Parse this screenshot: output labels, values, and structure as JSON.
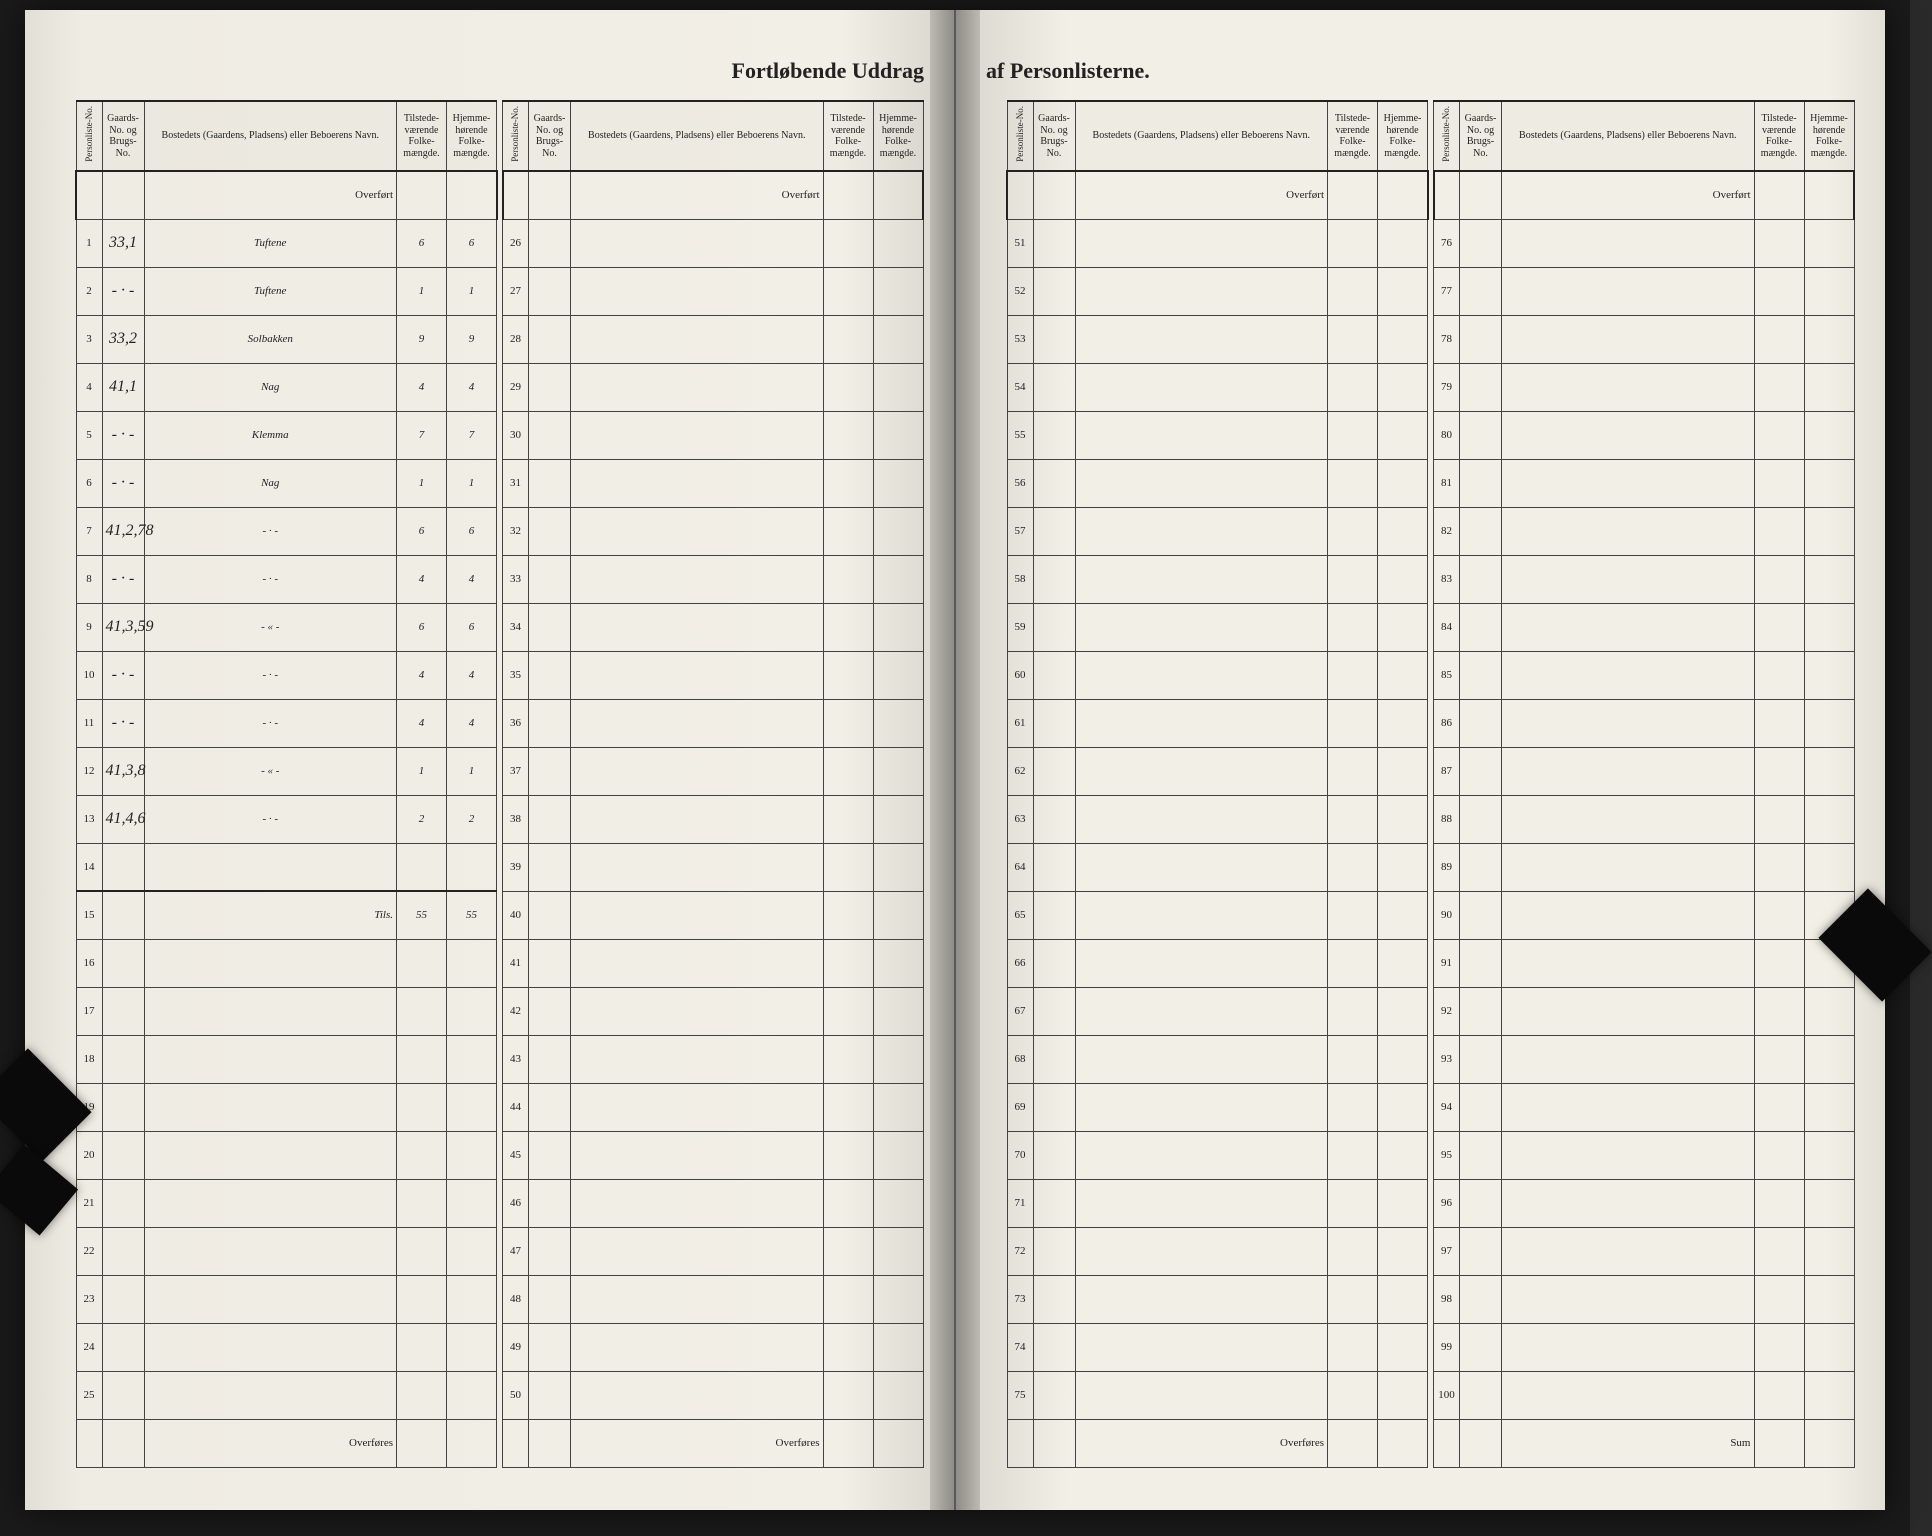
{
  "document": {
    "type": "ledger-table",
    "language": "no",
    "title_left": "Fortløbende Uddrag",
    "title_right": "af Personlisterne.",
    "overfort_label": "Overført",
    "overfores_label": "Overføres",
    "sum_label": "Sum",
    "headers": {
      "personliste_no": "Personliste-No.",
      "gaards_no": "Gaards-No. og Brugs-No.",
      "bosted": "Bostedets (Gaardens, Pladsens) eller Beboerens Navn.",
      "tilstede": "Tilstede-værende Folke-mængde.",
      "hjemme": "Hjemme-hørende Folke-mængde."
    },
    "colors": {
      "paper": "#f2efe6",
      "ink_print": "#222222",
      "ink_hand": "#3a3a3a",
      "rule": "#434343",
      "heavy_rule": "#222222",
      "background": "#1a1a1a"
    },
    "typography": {
      "title_size_pt": 16,
      "header_size_pt": 8,
      "rownum_size_pt": 10,
      "handwriting_family": "cursive"
    },
    "layout": {
      "rows_per_block": 25,
      "blocks": 4,
      "row_ranges": [
        [
          1,
          25
        ],
        [
          26,
          50
        ],
        [
          51,
          75
        ],
        [
          76,
          100
        ]
      ]
    }
  },
  "entries": [
    {
      "no": 1,
      "gaard": "33,1",
      "bosted": "Tuftene",
      "til": "6",
      "hjem": "6"
    },
    {
      "no": 2,
      "gaard": "- · -",
      "bosted": "Tuftene",
      "til": "1",
      "hjem": "1"
    },
    {
      "no": 3,
      "gaard": "33,2",
      "bosted": "Solbakken",
      "til": "9",
      "hjem": "9"
    },
    {
      "no": 4,
      "gaard": "41,1",
      "bosted": "Nag",
      "til": "4",
      "hjem": "4"
    },
    {
      "no": 5,
      "gaard": "- · -",
      "bosted": "Klemma",
      "til": "7",
      "hjem": "7"
    },
    {
      "no": 6,
      "gaard": "- · -",
      "bosted": "Nag",
      "til": "1",
      "hjem": "1"
    },
    {
      "no": 7,
      "gaard": "41,2,78",
      "bosted": "- · -",
      "til": "6",
      "hjem": "6"
    },
    {
      "no": 8,
      "gaard": "- · -",
      "bosted": "- · -",
      "til": "4",
      "hjem": "4"
    },
    {
      "no": 9,
      "gaard": "41,3,59",
      "bosted": "- « -",
      "til": "6",
      "hjem": "6"
    },
    {
      "no": 10,
      "gaard": "- · -",
      "bosted": "- · -",
      "til": "4",
      "hjem": "4"
    },
    {
      "no": 11,
      "gaard": "- · -",
      "bosted": "- · -",
      "til": "4",
      "hjem": "4"
    },
    {
      "no": 12,
      "gaard": "41,3,8",
      "bosted": "- « -",
      "til": "1",
      "hjem": "1"
    },
    {
      "no": 13,
      "gaard": "41,4,6",
      "bosted": "- · -",
      "til": "2",
      "hjem": "2"
    }
  ],
  "totals": {
    "label": "Tils.",
    "til": "55",
    "hjem": "55",
    "row": 15
  }
}
